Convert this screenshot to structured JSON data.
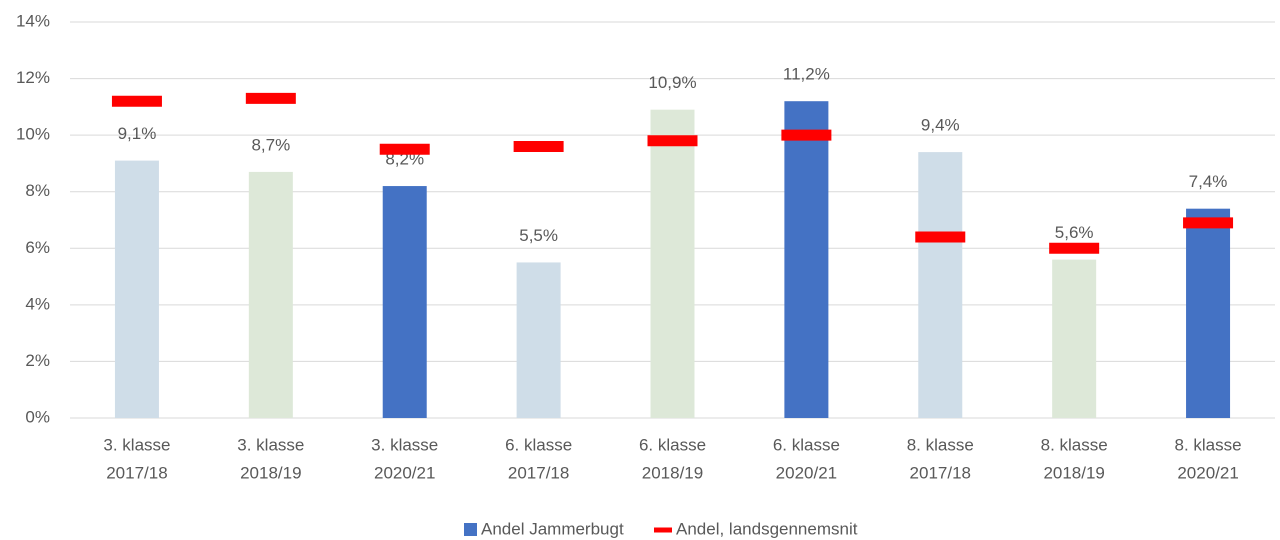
{
  "chart_data": {
    "type": "bar",
    "categories": [
      [
        "3. klasse",
        "2017/18"
      ],
      [
        "3. klasse",
        "2018/19"
      ],
      [
        "3. klasse",
        "2020/21"
      ],
      [
        "6. klasse",
        "2017/18"
      ],
      [
        "6. klasse",
        "2018/19"
      ],
      [
        "6. klasse",
        "2020/21"
      ],
      [
        "8. klasse",
        "2017/18"
      ],
      [
        "8. klasse",
        "2018/19"
      ],
      [
        "8. klasse",
        "2020/21"
      ]
    ],
    "series": [
      {
        "name": "Andel Jammerbugt",
        "color": "#4472c4",
        "colors": [
          "#cfdde8",
          "#dde8d8",
          "#4472c4",
          "#cfdde8",
          "#dde8d8",
          "#4472c4",
          "#cfdde8",
          "#dde8d8",
          "#4472c4"
        ],
        "values": [
          9.1,
          8.7,
          8.2,
          5.5,
          10.9,
          11.2,
          9.4,
          5.6,
          7.4
        ],
        "value_labels": [
          "9,1%",
          "8,7%",
          "8,2%",
          "5,5%",
          "10,9%",
          "11,2%",
          "9,4%",
          "5,6%",
          "7,4%"
        ]
      },
      {
        "name": "Andel, landsgennemsnit",
        "color": "#ff0000",
        "values": [
          11.2,
          11.3,
          9.5,
          9.6,
          9.8,
          10.0,
          6.4,
          6.0,
          6.9
        ]
      }
    ],
    "ylim": [
      0,
      14
    ],
    "yticks": [
      {
        "value": 0,
        "label": "0%"
      },
      {
        "value": 2,
        "label": "2%"
      },
      {
        "value": 4,
        "label": "4%"
      },
      {
        "value": 6,
        "label": "6%"
      },
      {
        "value": 8,
        "label": "8%"
      },
      {
        "value": 10,
        "label": "10%"
      },
      {
        "value": 12,
        "label": "12%"
      },
      {
        "value": 14,
        "label": "14%"
      }
    ],
    "grid": true,
    "legend": "bottom"
  }
}
